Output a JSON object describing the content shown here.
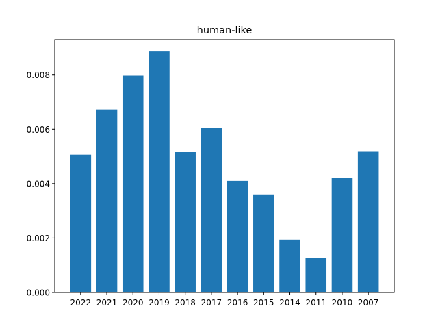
{
  "chart_data": {
    "type": "bar",
    "title": "human-like",
    "xlabel": "",
    "ylabel": "",
    "categories": [
      "2022",
      "2021",
      "2020",
      "2019",
      "2018",
      "2017",
      "2016",
      "2015",
      "2014",
      "2011",
      "2010",
      "2007"
    ],
    "values": [
      0.00506,
      0.00672,
      0.00798,
      0.00887,
      0.00517,
      0.00604,
      0.0041,
      0.0036,
      0.00194,
      0.00126,
      0.00421,
      0.00519
    ],
    "ylim": [
      0,
      0.0093
    ],
    "yticks": [
      "0.000",
      "0.002",
      "0.004",
      "0.006",
      "0.008"
    ],
    "ytick_values": [
      0,
      0.002,
      0.004,
      0.006,
      0.008
    ],
    "bar_color": "#1f77b4",
    "grid": false,
    "legend": "none"
  }
}
